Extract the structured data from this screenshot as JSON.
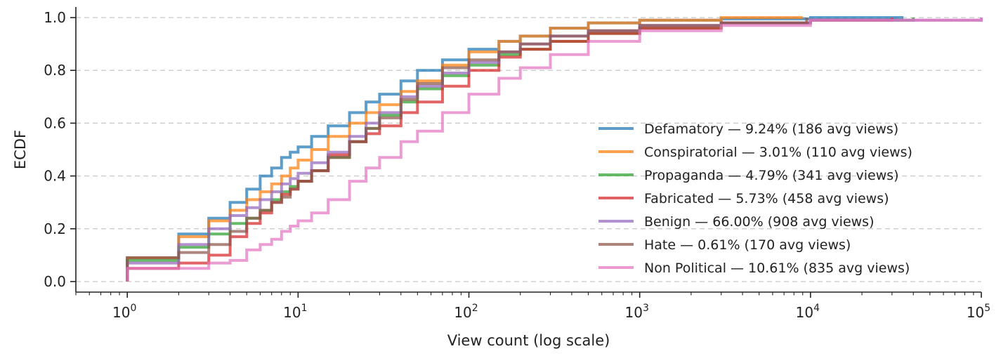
{
  "chart_data": {
    "type": "line",
    "subtype": "step-ecdf",
    "xlabel": "View count (log scale)",
    "ylabel": "ECDF",
    "xscale": "log",
    "xlim": [
      0.5,
      100000
    ],
    "ylim": [
      -0.04,
      1.04
    ],
    "x_ticks": [
      {
        "value": 1,
        "base": "10",
        "exp": "0"
      },
      {
        "value": 10,
        "base": "10",
        "exp": "1"
      },
      {
        "value": 100,
        "base": "10",
        "exp": "2"
      },
      {
        "value": 1000,
        "base": "10",
        "exp": "3"
      },
      {
        "value": 10000,
        "base": "10",
        "exp": "4"
      },
      {
        "value": 100000,
        "base": "10",
        "exp": "5"
      }
    ],
    "y_ticks": [
      {
        "value": 0.0,
        "label": "0.0"
      },
      {
        "value": 0.2,
        "label": "0.2"
      },
      {
        "value": 0.4,
        "label": "0.4"
      },
      {
        "value": 0.6,
        "label": "0.6"
      },
      {
        "value": 0.8,
        "label": "0.8"
      },
      {
        "value": 1.0,
        "label": "1.0"
      }
    ],
    "grid": "horizontal dashed",
    "legend_position": "right",
    "series": [
      {
        "name": "Defamatory — 9.24% (186 avg views)",
        "color": "#1f77b4",
        "points": [
          [
            1,
            0.09
          ],
          [
            2,
            0.18
          ],
          [
            3,
            0.24
          ],
          [
            4,
            0.3
          ],
          [
            5,
            0.35
          ],
          [
            6,
            0.4
          ],
          [
            7,
            0.43
          ],
          [
            8,
            0.47
          ],
          [
            9,
            0.49
          ],
          [
            10,
            0.51
          ],
          [
            12,
            0.55
          ],
          [
            15,
            0.59
          ],
          [
            20,
            0.64
          ],
          [
            25,
            0.68
          ],
          [
            30,
            0.71
          ],
          [
            40,
            0.76
          ],
          [
            50,
            0.8
          ],
          [
            70,
            0.84
          ],
          [
            100,
            0.88
          ],
          [
            150,
            0.91
          ],
          [
            200,
            0.93
          ],
          [
            300,
            0.96
          ],
          [
            500,
            0.98
          ],
          [
            1000,
            0.99
          ],
          [
            3000,
            0.995
          ],
          [
            10000,
            1.0
          ],
          [
            35000,
            1.0
          ]
        ]
      },
      {
        "name": "Conspiratorial — 3.01% (110 avg views)",
        "color": "#ff7f0e",
        "points": [
          [
            1,
            0.09
          ],
          [
            2,
            0.17
          ],
          [
            3,
            0.23
          ],
          [
            4,
            0.27
          ],
          [
            5,
            0.31
          ],
          [
            6,
            0.34
          ],
          [
            7,
            0.37
          ],
          [
            8,
            0.4
          ],
          [
            9,
            0.43
          ],
          [
            10,
            0.46
          ],
          [
            12,
            0.5
          ],
          [
            15,
            0.55
          ],
          [
            20,
            0.6
          ],
          [
            25,
            0.64
          ],
          [
            30,
            0.67
          ],
          [
            40,
            0.72
          ],
          [
            50,
            0.76
          ],
          [
            70,
            0.82
          ],
          [
            100,
            0.87
          ],
          [
            150,
            0.91
          ],
          [
            200,
            0.93
          ],
          [
            300,
            0.96
          ],
          [
            500,
            0.98
          ],
          [
            1000,
            0.99
          ],
          [
            3000,
            1.0
          ],
          [
            9000,
            1.0
          ]
        ]
      },
      {
        "name": "Propaganda — 4.79% (341 avg views)",
        "color": "#2ca02c",
        "points": [
          [
            1,
            0.08
          ],
          [
            2,
            0.13
          ],
          [
            3,
            0.18
          ],
          [
            4,
            0.22
          ],
          [
            5,
            0.24
          ],
          [
            6,
            0.27
          ],
          [
            7,
            0.31
          ],
          [
            8,
            0.34
          ],
          [
            9,
            0.36
          ],
          [
            10,
            0.38
          ],
          [
            12,
            0.42
          ],
          [
            15,
            0.47
          ],
          [
            20,
            0.53
          ],
          [
            25,
            0.58
          ],
          [
            30,
            0.63
          ],
          [
            40,
            0.68
          ],
          [
            50,
            0.73
          ],
          [
            70,
            0.78
          ],
          [
            100,
            0.82
          ],
          [
            150,
            0.86
          ],
          [
            200,
            0.88
          ],
          [
            300,
            0.91
          ],
          [
            500,
            0.94
          ],
          [
            1000,
            0.96
          ],
          [
            3000,
            0.98
          ],
          [
            10000,
            0.99
          ],
          [
            40000,
            1.0
          ]
        ]
      },
      {
        "name": "Fabricated — 5.73% (458 avg views)",
        "color": "#d62728",
        "points": [
          [
            1,
            0.05
          ],
          [
            2,
            0.07
          ],
          [
            3,
            0.1
          ],
          [
            4,
            0.17
          ],
          [
            5,
            0.22
          ],
          [
            6,
            0.26
          ],
          [
            7,
            0.3
          ],
          [
            8,
            0.33
          ],
          [
            9,
            0.35
          ],
          [
            10,
            0.38
          ],
          [
            12,
            0.42
          ],
          [
            15,
            0.48
          ],
          [
            20,
            0.53
          ],
          [
            25,
            0.56
          ],
          [
            30,
            0.59
          ],
          [
            40,
            0.64
          ],
          [
            50,
            0.68
          ],
          [
            70,
            0.74
          ],
          [
            100,
            0.8
          ],
          [
            150,
            0.85
          ],
          [
            200,
            0.88
          ],
          [
            300,
            0.91
          ],
          [
            500,
            0.94
          ],
          [
            1000,
            0.96
          ],
          [
            3000,
            0.98
          ],
          [
            10000,
            0.99
          ],
          [
            30000,
            1.0
          ]
        ]
      },
      {
        "name": "Benign — 66.00% (908 avg views)",
        "color": "#9467bd",
        "points": [
          [
            1,
            0.07
          ],
          [
            2,
            0.14
          ],
          [
            3,
            0.2
          ],
          [
            4,
            0.25
          ],
          [
            5,
            0.28
          ],
          [
            6,
            0.31
          ],
          [
            7,
            0.34
          ],
          [
            8,
            0.37
          ],
          [
            9,
            0.39
          ],
          [
            10,
            0.41
          ],
          [
            12,
            0.45
          ],
          [
            15,
            0.49
          ],
          [
            20,
            0.55
          ],
          [
            25,
            0.6
          ],
          [
            30,
            0.64
          ],
          [
            40,
            0.7
          ],
          [
            50,
            0.74
          ],
          [
            70,
            0.79
          ],
          [
            100,
            0.83
          ],
          [
            150,
            0.87
          ],
          [
            200,
            0.9
          ],
          [
            300,
            0.93
          ],
          [
            500,
            0.95
          ],
          [
            1000,
            0.97
          ],
          [
            3000,
            0.98
          ],
          [
            10000,
            0.99
          ],
          [
            100000,
            1.0
          ]
        ]
      },
      {
        "name": "Hate — 0.61% (170 avg views)",
        "color": "#8c564b",
        "points": [
          [
            1,
            0.09
          ],
          [
            2,
            0.11
          ],
          [
            3,
            0.14
          ],
          [
            4,
            0.19
          ],
          [
            5,
            0.24
          ],
          [
            6,
            0.27
          ],
          [
            7,
            0.3
          ],
          [
            8,
            0.32
          ],
          [
            9,
            0.35
          ],
          [
            10,
            0.38
          ],
          [
            12,
            0.42
          ],
          [
            15,
            0.47
          ],
          [
            20,
            0.53
          ],
          [
            25,
            0.58
          ],
          [
            30,
            0.62
          ],
          [
            40,
            0.69
          ],
          [
            50,
            0.75
          ],
          [
            70,
            0.81
          ],
          [
            100,
            0.84
          ],
          [
            150,
            0.87
          ],
          [
            200,
            0.9
          ],
          [
            300,
            0.93
          ],
          [
            500,
            0.95
          ],
          [
            1000,
            0.97
          ],
          [
            3000,
            0.98
          ],
          [
            9500,
            1.0
          ]
        ]
      },
      {
        "name": "Non Political — 10.61% (835 avg views)",
        "color": "#e377c2",
        "points": [
          [
            1,
            0.05
          ],
          [
            2,
            0.05
          ],
          [
            3,
            0.07
          ],
          [
            4,
            0.08
          ],
          [
            5,
            0.12
          ],
          [
            6,
            0.14
          ],
          [
            7,
            0.16
          ],
          [
            8,
            0.19
          ],
          [
            9,
            0.21
          ],
          [
            10,
            0.23
          ],
          [
            12,
            0.26
          ],
          [
            15,
            0.31
          ],
          [
            20,
            0.38
          ],
          [
            25,
            0.43
          ],
          [
            30,
            0.47
          ],
          [
            40,
            0.53
          ],
          [
            50,
            0.57
          ],
          [
            70,
            0.64
          ],
          [
            100,
            0.71
          ],
          [
            150,
            0.77
          ],
          [
            200,
            0.81
          ],
          [
            300,
            0.86
          ],
          [
            500,
            0.91
          ],
          [
            1000,
            0.95
          ],
          [
            3000,
            0.97
          ],
          [
            10000,
            0.99
          ],
          [
            100000,
            1.0
          ]
        ]
      }
    ]
  }
}
